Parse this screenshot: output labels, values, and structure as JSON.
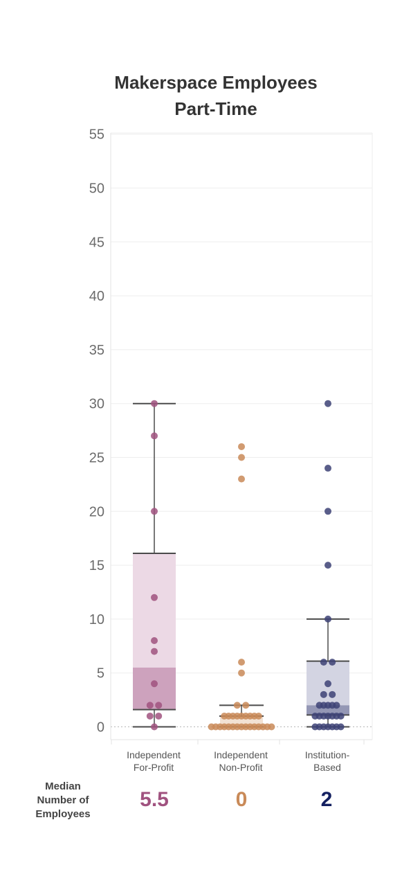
{
  "chart_data": {
    "type": "box",
    "title": "Makerspace Employees",
    "subtitle": "Part-Time",
    "y_ticks": [
      0,
      5,
      10,
      15,
      20,
      25,
      30,
      35,
      40,
      45,
      50,
      55
    ],
    "ylim": [
      0,
      55
    ],
    "grid": true,
    "categories": [
      "Independent For-Profit",
      "Independent Non-Profit",
      "Institution-Based"
    ],
    "category_lines": [
      [
        "Independent",
        "For-Profit"
      ],
      [
        "Independent",
        "Non-Profit"
      ],
      [
        "Institution-",
        "Based"
      ]
    ],
    "series": [
      {
        "color": "#a0527f",
        "box_light": "#ecd9e5",
        "box_dark": "#cda2bd",
        "min": 0,
        "q1": 1.6,
        "median": 5.5,
        "q3": 16.1,
        "max": 30,
        "points": [
          [
            0,
            0
          ],
          [
            -1,
            1
          ],
          [
            1,
            1
          ],
          [
            -1,
            2
          ],
          [
            1,
            2
          ],
          [
            0,
            4
          ],
          [
            0,
            7
          ],
          [
            0,
            8
          ],
          [
            0,
            12
          ],
          [
            0,
            20
          ],
          [
            0,
            27
          ],
          [
            0,
            30
          ]
        ]
      },
      {
        "color": "#c98a58",
        "box_light": "#f2e2d4",
        "box_dark": "#e3c0a1",
        "min": 0,
        "q1": 0,
        "median": 0,
        "q3": 1,
        "max": 2,
        "points": [
          [
            -7,
            0
          ],
          [
            -6,
            0
          ],
          [
            -5,
            0
          ],
          [
            -4,
            0
          ],
          [
            -3,
            0
          ],
          [
            -2,
            0
          ],
          [
            -1,
            0
          ],
          [
            0,
            0
          ],
          [
            1,
            0
          ],
          [
            2,
            0
          ],
          [
            3,
            0
          ],
          [
            4,
            0
          ],
          [
            5,
            0
          ],
          [
            6,
            0
          ],
          [
            7,
            0
          ],
          [
            -4,
            1
          ],
          [
            -3,
            1
          ],
          [
            -2,
            1
          ],
          [
            -1,
            1
          ],
          [
            0,
            1
          ],
          [
            1,
            1
          ],
          [
            2,
            1
          ],
          [
            3,
            1
          ],
          [
            4,
            1
          ],
          [
            -1,
            2
          ],
          [
            1,
            2
          ],
          [
            0,
            5
          ],
          [
            0,
            6
          ],
          [
            0,
            23
          ],
          [
            0,
            25
          ],
          [
            0,
            26
          ]
        ]
      },
      {
        "color": "#3d4275",
        "box_light": "#d3d4e2",
        "box_dark": "#9497b5",
        "min": 0,
        "q1": 1.1,
        "median": 2,
        "q3": 6.1,
        "max": 10,
        "points": [
          [
            -3,
            0
          ],
          [
            -2,
            0
          ],
          [
            -1,
            0
          ],
          [
            0,
            0
          ],
          [
            1,
            0
          ],
          [
            2,
            0
          ],
          [
            3,
            0
          ],
          [
            -3,
            1
          ],
          [
            -2,
            1
          ],
          [
            -1,
            1
          ],
          [
            0,
            1
          ],
          [
            1,
            1
          ],
          [
            2,
            1
          ],
          [
            3,
            1
          ],
          [
            -2,
            2
          ],
          [
            -1,
            2
          ],
          [
            0,
            2
          ],
          [
            1,
            2
          ],
          [
            2,
            2
          ],
          [
            -1,
            3
          ],
          [
            1,
            3
          ],
          [
            0,
            4
          ],
          [
            -1,
            6
          ],
          [
            1,
            6
          ],
          [
            0,
            10
          ],
          [
            0,
            15
          ],
          [
            0,
            20
          ],
          [
            0,
            24
          ],
          [
            0,
            30
          ]
        ]
      }
    ]
  },
  "medians": {
    "label_lines": [
      "Median",
      "Number of",
      "Employees"
    ],
    "values": [
      {
        "text": "5.5",
        "color": "#a0527f"
      },
      {
        "text": "0",
        "color": "#c98a58"
      },
      {
        "text": "2",
        "color": "#142060"
      }
    ]
  }
}
